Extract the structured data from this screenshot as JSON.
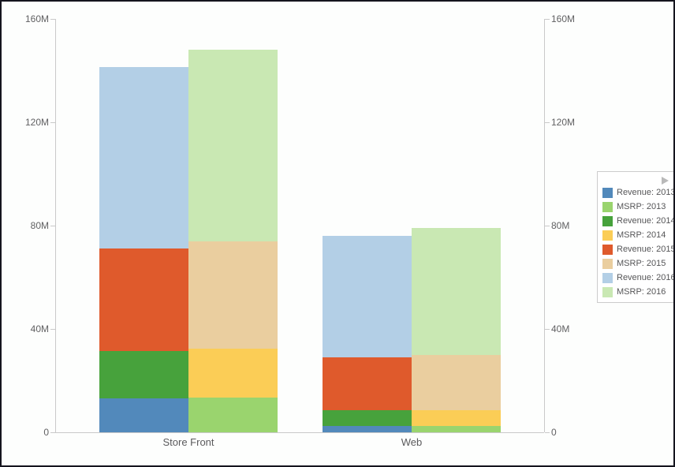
{
  "window": {
    "background": "#fdfefd",
    "border_color": "#15151e"
  },
  "axis": {
    "y_tick_labels": [
      "0",
      "40M",
      "80M",
      "120M",
      "160M"
    ],
    "y_tick_values": [
      0,
      40,
      80,
      120,
      160
    ],
    "y_max": 160,
    "dual_axes": true,
    "label_color": "#606062",
    "line_color": "#c9c9c9"
  },
  "legend": {
    "position": "right",
    "collapse_icon": "right-arrow",
    "border_color": "#cccccc"
  },
  "chart_data": {
    "type": "bar",
    "stacked": true,
    "categories": [
      "Store Front",
      "Web"
    ],
    "stacks": [
      "Revenue",
      "MSRP"
    ],
    "value_unit": "M",
    "ylim": [
      0,
      160
    ],
    "grid": false,
    "legend_position": "right",
    "series": [
      {
        "label": "Revenue: 2013",
        "stack": "Revenue",
        "year": 2013,
        "color": "#5289bb",
        "values": [
          13,
          2.5
        ]
      },
      {
        "label": "MSRP: 2013",
        "stack": "MSRP",
        "year": 2013,
        "color": "#9ad46e",
        "values": [
          13.5,
          2.5
        ]
      },
      {
        "label": "Revenue: 2014",
        "stack": "Revenue",
        "year": 2014,
        "color": "#47a23c",
        "values": [
          18.5,
          6
        ]
      },
      {
        "label": "MSRP: 2014",
        "stack": "MSRP",
        "year": 2014,
        "color": "#fbcd56",
        "values": [
          19,
          6
        ]
      },
      {
        "label": "Revenue: 2015",
        "stack": "Revenue",
        "year": 2015,
        "color": "#df5a2c",
        "values": [
          39.5,
          20.5
        ]
      },
      {
        "label": "MSRP: 2015",
        "stack": "MSRP",
        "year": 2015,
        "color": "#eace9f",
        "values": [
          41.5,
          21.5
        ]
      },
      {
        "label": "Revenue: 2016",
        "stack": "Revenue",
        "year": 2016,
        "color": "#b3cfe6",
        "values": [
          70.5,
          47
        ]
      },
      {
        "label": "MSRP: 2016",
        "stack": "MSRP",
        "year": 2016,
        "color": "#c9e8b3",
        "values": [
          74,
          49
        ]
      }
    ],
    "stack_totals": {
      "Store Front": {
        "Revenue": 141.5,
        "MSRP": 148
      },
      "Web": {
        "Revenue": 76,
        "MSRP": 79
      }
    }
  }
}
